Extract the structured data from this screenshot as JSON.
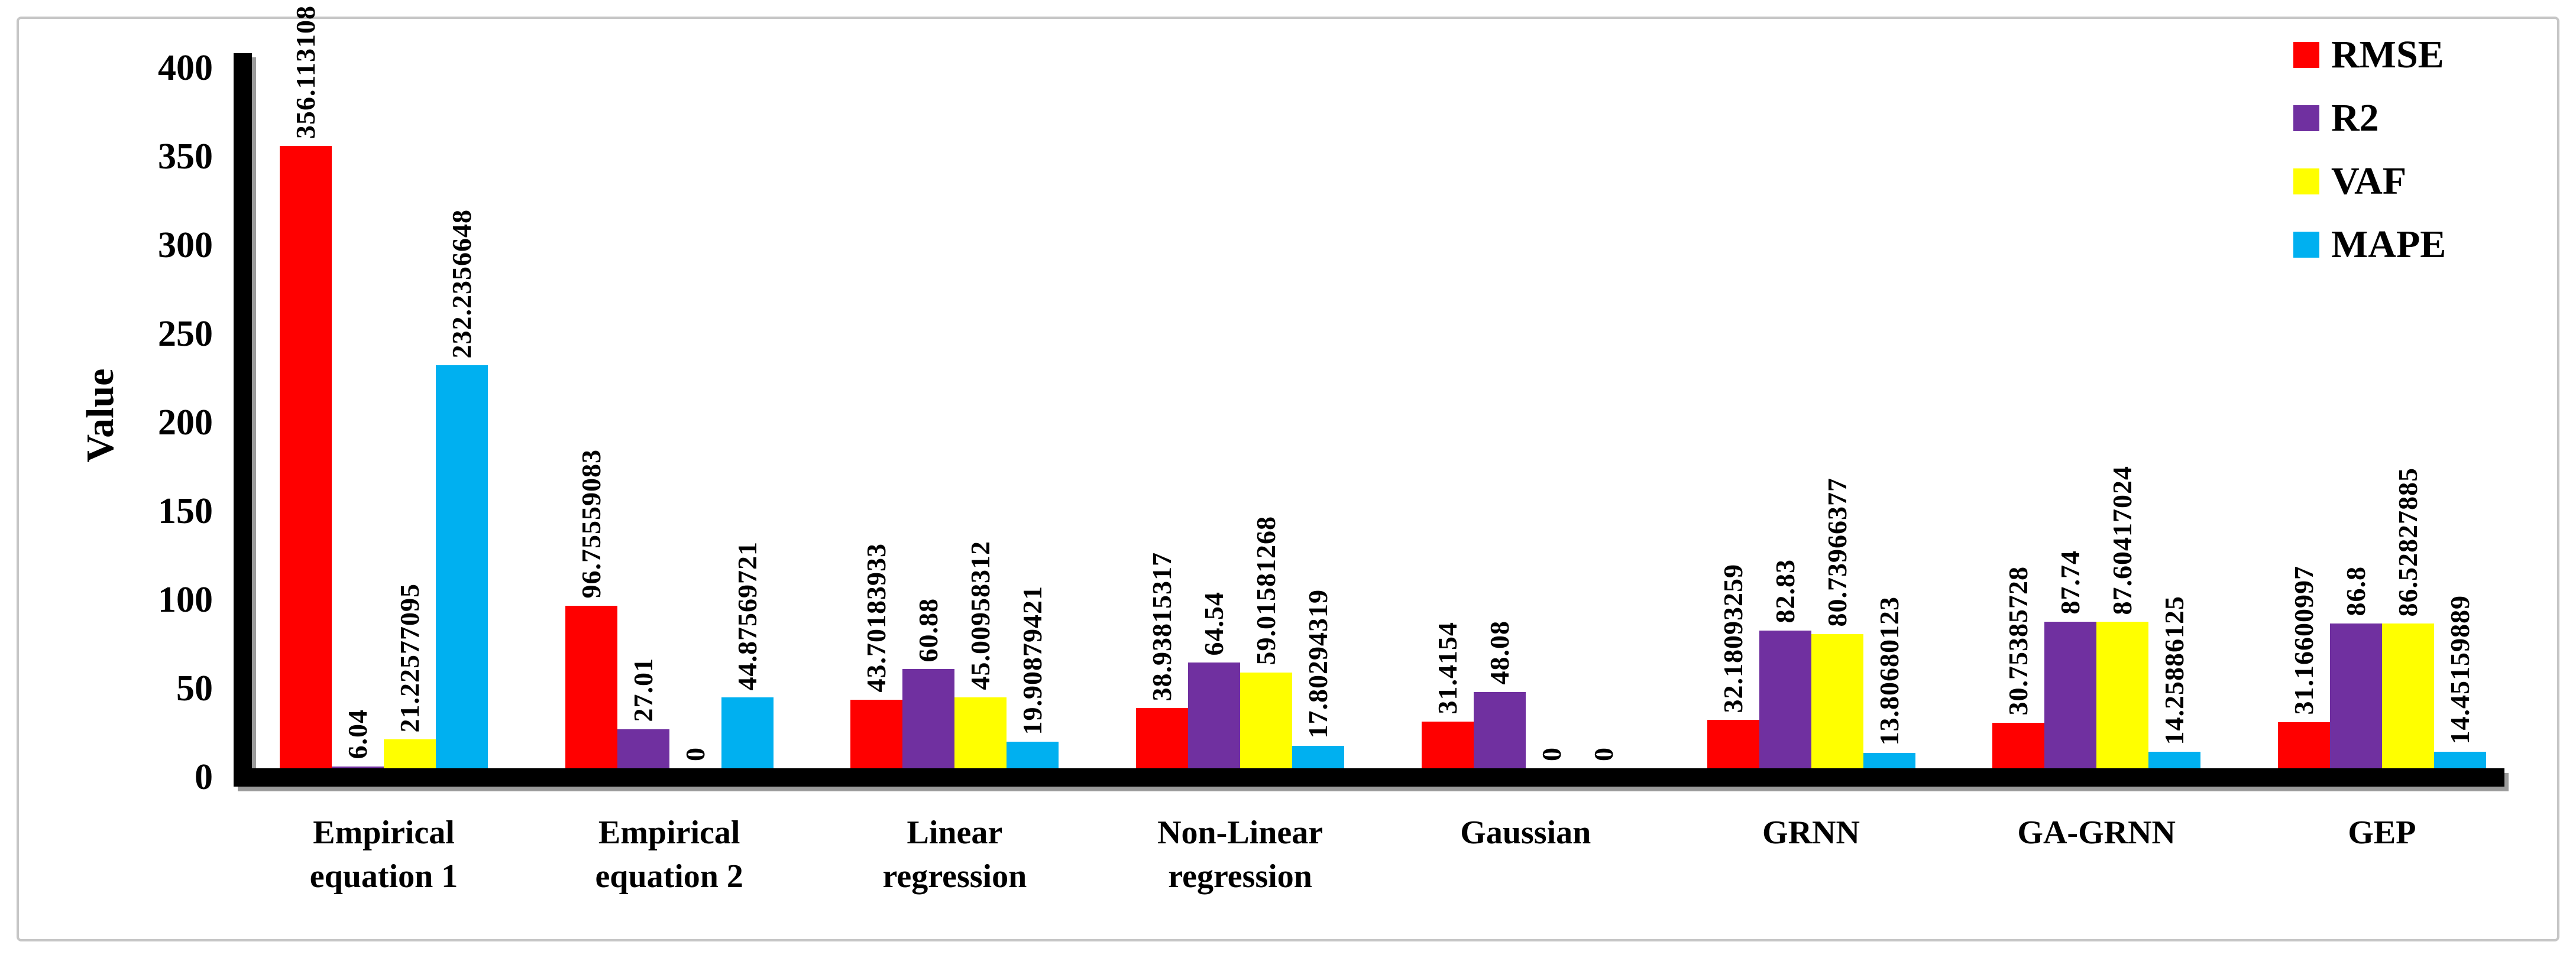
{
  "chart_data": {
    "type": "bar",
    "title": "",
    "ylabel": "Value",
    "xlabel": "",
    "ylim": [
      0,
      400
    ],
    "yticks": [
      0,
      50,
      100,
      150,
      200,
      250,
      300,
      350,
      400
    ],
    "grid": false,
    "legend_position": "top-right",
    "bar_value_labels_rotated": true,
    "categories": [
      "Empirical\nequation 1",
      "Empirical\nequation 2",
      "Linear\nregression",
      "Non-Linear\nregression",
      "Gaussian",
      "GRNN",
      "GA-GRNN",
      "GEP"
    ],
    "series": [
      {
        "name": "RMSE",
        "color": "#FF0000",
        "labels": [
          "356.113108",
          "96.75559083",
          "43.70183933",
          "38.93815317",
          "31.4154",
          "32.18093259",
          "30.75385728",
          "31.16600997"
        ],
        "values": [
          356.113108,
          96.75559083,
          43.70183933,
          38.93815317,
          31.4154,
          32.18093259,
          30.75385728,
          31.16600997
        ]
      },
      {
        "name": "R2",
        "color": "#7030A0",
        "labels": [
          "6.04",
          "27.01",
          "60.88",
          "64.54",
          "48.08",
          "82.83",
          "87.74",
          "86.8"
        ],
        "values": [
          6.04,
          27.01,
          60.88,
          64.54,
          48.08,
          82.83,
          87.74,
          86.8
        ]
      },
      {
        "name": "VAF",
        "color": "#FFFF00",
        "labels": [
          "21.22577095",
          "0",
          "45.00958312",
          "59.01581268",
          "0",
          "80.73966377",
          "87.60417024",
          "86.52827885"
        ],
        "values": [
          21.22577095,
          0,
          45.00958312,
          59.01581268,
          0,
          80.73966377,
          87.60417024,
          86.52827885
        ]
      },
      {
        "name": "MAPE",
        "color": "#00B0F0",
        "labels": [
          "232.2356648",
          "44.87569721",
          "19.90879421",
          "17.80294319",
          "0",
          "13.80680123",
          "14.25886125",
          "14.45159889"
        ],
        "values": [
          232.2356648,
          44.87569721,
          19.90879421,
          17.80294319,
          0,
          13.80680123,
          14.25886125,
          14.45159889
        ]
      }
    ]
  }
}
